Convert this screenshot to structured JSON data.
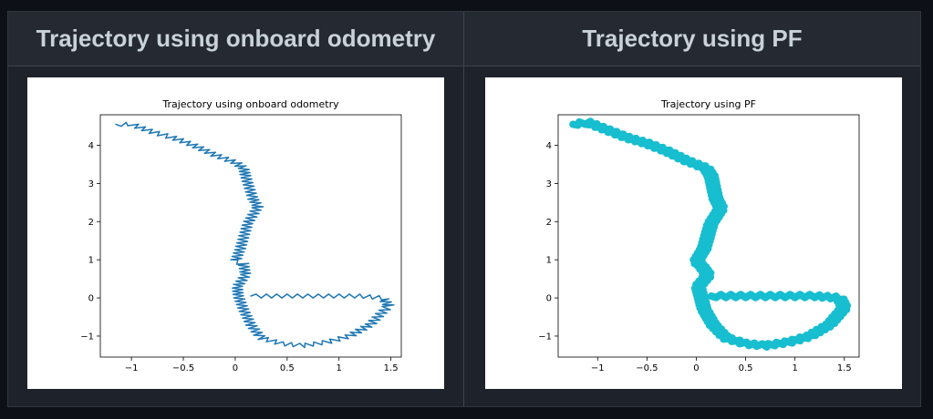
{
  "headers": [
    "Trajectory using onboard odometry",
    "Trajectory using PF"
  ],
  "chart_data": [
    {
      "type": "line",
      "title": "Trajectory using onboard odometry",
      "xlabel": "",
      "ylabel": "",
      "xlim": [
        -1.3,
        1.6
      ],
      "ylim": [
        -1.55,
        4.8
      ],
      "xticks": [
        -1.0,
        -0.5,
        0.0,
        0.5,
        1.0,
        1.5
      ],
      "yticks": [
        -1,
        0,
        1,
        2,
        3,
        4
      ],
      "color": "#1f77b4",
      "line_width": 1.5,
      "oscillation": {
        "amplitude": 0.05,
        "period": 0.1
      },
      "path": [
        [
          -1.15,
          4.55
        ],
        [
          -1.0,
          4.55
        ],
        [
          -0.8,
          4.35
        ],
        [
          -0.6,
          4.2
        ],
        [
          -0.4,
          4.0
        ],
        [
          -0.2,
          3.75
        ],
        [
          0.0,
          3.55
        ],
        [
          0.08,
          3.4
        ],
        [
          0.1,
          3.2
        ],
        [
          0.17,
          2.6
        ],
        [
          0.22,
          2.4
        ],
        [
          0.12,
          1.95
        ],
        [
          0.05,
          1.3
        ],
        [
          0.0,
          0.95
        ],
        [
          0.08,
          0.9
        ],
        [
          0.1,
          0.6
        ],
        [
          0.02,
          0.3
        ],
        [
          0.03,
          0.05
        ],
        [
          0.08,
          -0.3
        ],
        [
          0.15,
          -0.7
        ],
        [
          0.25,
          -1.05
        ],
        [
          0.45,
          -1.2
        ],
        [
          0.65,
          -1.25
        ],
        [
          0.9,
          -1.15
        ],
        [
          1.1,
          -1.0
        ],
        [
          1.3,
          -0.7
        ],
        [
          1.48,
          -0.2
        ],
        [
          1.42,
          0.0
        ],
        [
          1.2,
          0.05
        ],
        [
          0.8,
          0.05
        ],
        [
          0.4,
          0.05
        ],
        [
          0.15,
          0.05
        ]
      ]
    },
    {
      "type": "line",
      "title": "Trajectory using PF",
      "xlabel": "",
      "ylabel": "",
      "xlim": [
        -1.4,
        1.65
      ],
      "ylim": [
        -1.55,
        4.8
      ],
      "xticks": [
        -1.0,
        -0.5,
        0.0,
        0.5,
        1.0,
        1.5
      ],
      "yticks": [
        -1,
        0,
        1,
        2,
        3,
        4
      ],
      "color": "#17becf",
      "line_width": 8,
      "oscillation": {
        "amplitude": 0.04,
        "period": 0.1
      },
      "path": [
        [
          -1.25,
          4.55
        ],
        [
          -1.1,
          4.6
        ],
        [
          -0.9,
          4.4
        ],
        [
          -0.7,
          4.2
        ],
        [
          -0.5,
          4.05
        ],
        [
          -0.3,
          3.85
        ],
        [
          -0.1,
          3.6
        ],
        [
          0.1,
          3.4
        ],
        [
          0.15,
          3.2
        ],
        [
          0.2,
          2.6
        ],
        [
          0.25,
          2.35
        ],
        [
          0.15,
          1.95
        ],
        [
          0.08,
          1.3
        ],
        [
          0.0,
          0.95
        ],
        [
          0.05,
          0.85
        ],
        [
          0.12,
          0.6
        ],
        [
          0.02,
          0.3
        ],
        [
          0.05,
          0.0
        ],
        [
          0.08,
          -0.3
        ],
        [
          0.17,
          -0.7
        ],
        [
          0.3,
          -1.05
        ],
        [
          0.5,
          -1.2
        ],
        [
          0.7,
          -1.25
        ],
        [
          0.95,
          -1.15
        ],
        [
          1.15,
          -1.0
        ],
        [
          1.35,
          -0.7
        ],
        [
          1.5,
          -0.25
        ],
        [
          1.45,
          0.0
        ],
        [
          1.2,
          0.05
        ],
        [
          0.8,
          0.05
        ],
        [
          0.4,
          0.05
        ],
        [
          0.15,
          0.05
        ]
      ]
    }
  ]
}
